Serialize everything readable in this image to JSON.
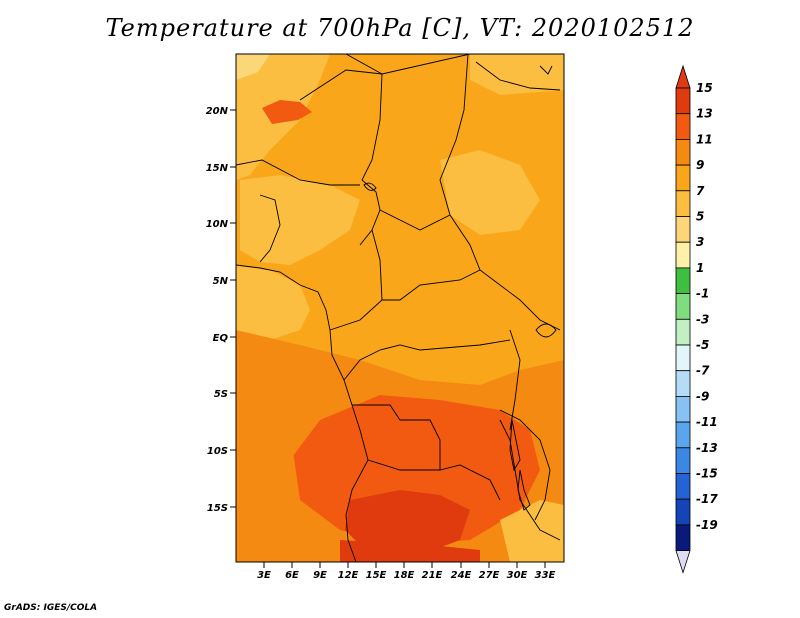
{
  "title": "Temperature at 700hPa [C], VT: 2020102512",
  "credit": "GrADS: IGES/COLA",
  "map": {
    "lat_labels": [
      "20N",
      "15N",
      "10N",
      "5N",
      "EQ",
      "5S",
      "10S",
      "15S"
    ],
    "lon_labels": [
      "3E",
      "6E",
      "9E",
      "12E",
      "15E",
      "18E",
      "21E",
      "24E",
      "27E",
      "30E",
      "33E"
    ],
    "extent": {
      "lon": [
        0,
        35
      ],
      "lat": [
        -20,
        24
      ]
    }
  },
  "colorbar": {
    "labels": [
      "15",
      "13",
      "11",
      "9",
      "7",
      "5",
      "3",
      "1",
      "-1",
      "-3",
      "-5",
      "-7",
      "-9",
      "-11",
      "-13",
      "-15",
      "-17",
      "-19"
    ],
    "colors": [
      "#e03a0f",
      "#f25a12",
      "#f58a12",
      "#f9a61a",
      "#fbbe40",
      "#fcd77a",
      "#fdf0a8",
      "#3fbf3f",
      "#7fdc7f",
      "#c2f0c2",
      "#e2f5f8",
      "#b5dcf6",
      "#87c2f2",
      "#5aa6ee",
      "#3c86e4",
      "#2462d6",
      "#1544b8",
      "#0a1a7a"
    ]
  },
  "regions": [
    {
      "name": "tropical-band",
      "color": "#f9a61a"
    },
    {
      "name": "sahara-north",
      "color": "#fbbe40"
    },
    {
      "name": "guinea-coast",
      "color": "#fbbe40"
    },
    {
      "name": "southern-warm",
      "color": "#f58a12"
    },
    {
      "name": "kalahari-hot",
      "color": "#f25a12"
    },
    {
      "name": "hot-core",
      "color": "#e03a0f"
    }
  ]
}
